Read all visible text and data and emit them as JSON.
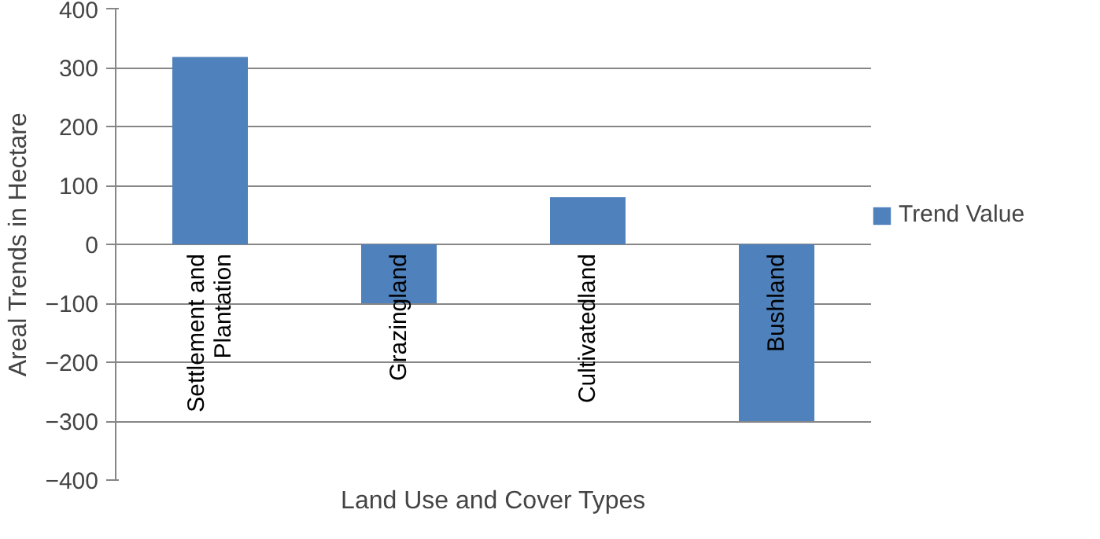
{
  "chart_data": {
    "type": "bar",
    "xlabel": "Land Use and Cover Types",
    "ylabel": "Areal Trends in Hectare",
    "categories": [
      "Settlement and\nPlantation",
      "Grazingland",
      "Cultivatedland",
      "Bushland"
    ],
    "series": [
      {
        "name": "Trend Value",
        "color": "#4f81bd",
        "values": [
          318,
          -100,
          80,
          -300
        ]
      }
    ],
    "ylim": [
      -400,
      400
    ],
    "yticks": [
      -400,
      -300,
      -200,
      -100,
      0,
      100,
      200,
      300,
      400
    ],
    "grid": "y",
    "legend": "right"
  }
}
